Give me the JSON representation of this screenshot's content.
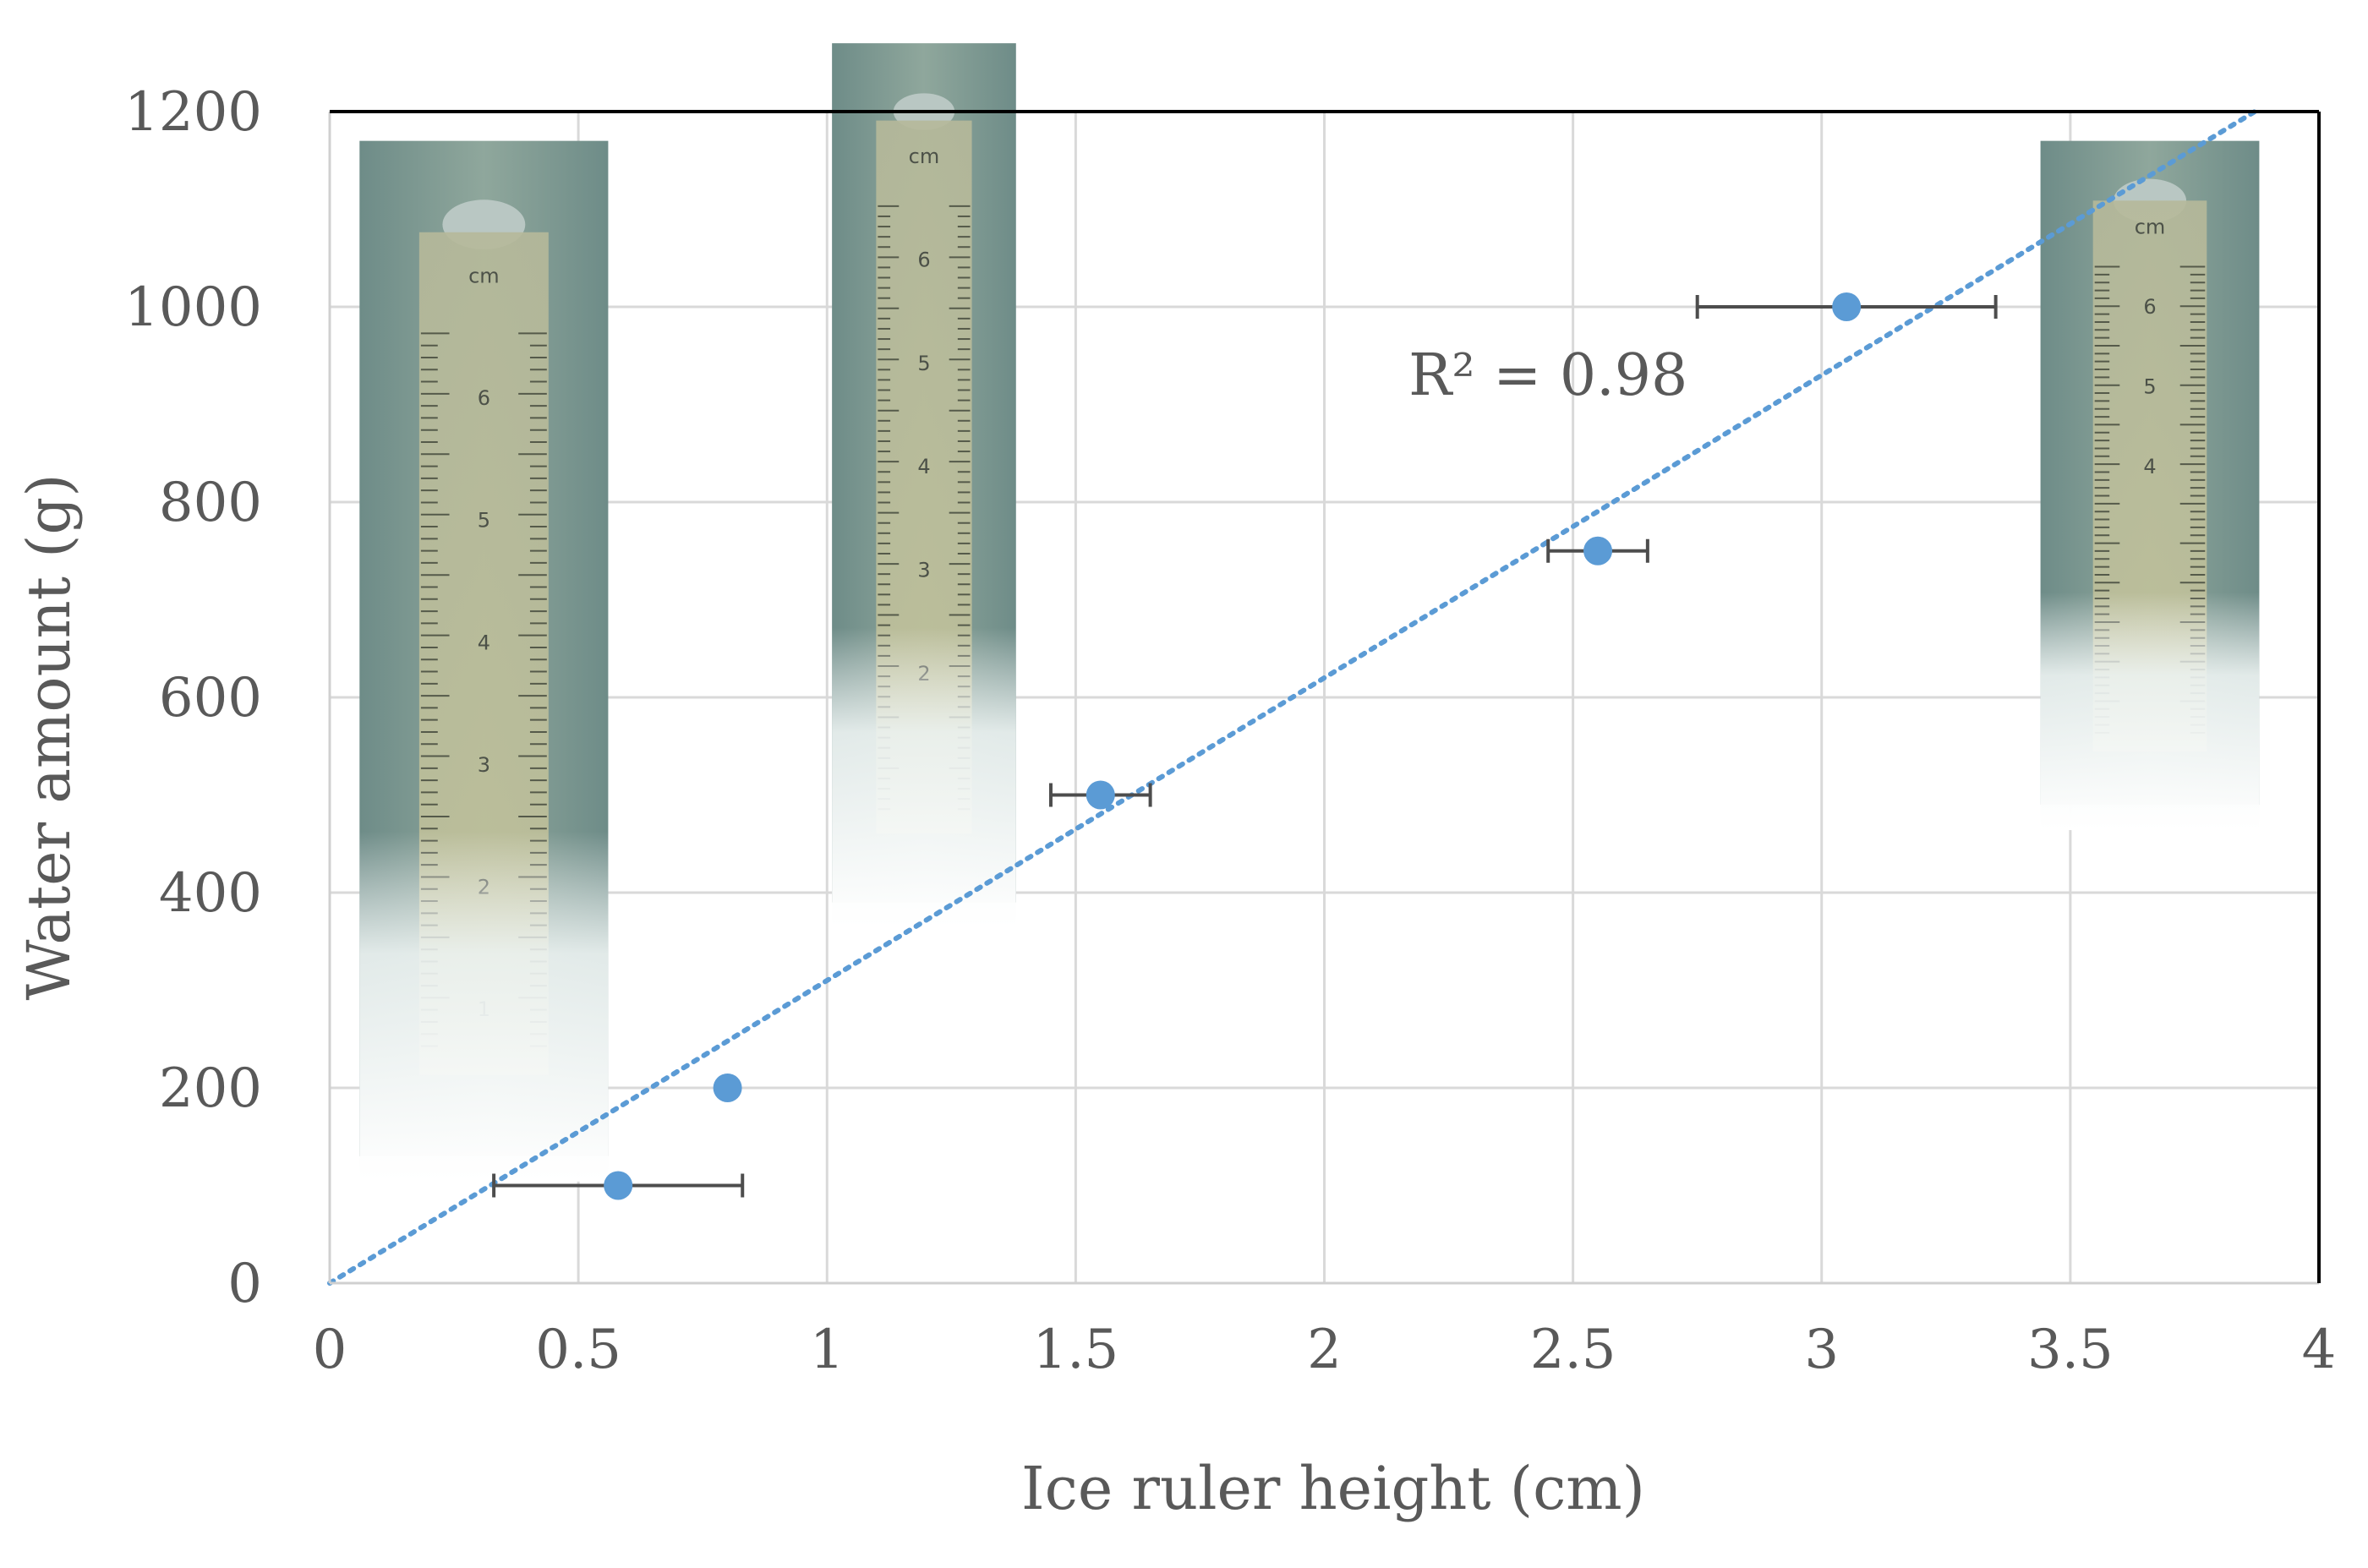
{
  "chart_data": {
    "type": "scatter",
    "xlabel": "Ice ruler height (cm)",
    "ylabel": "Water amount (g)",
    "xlim": [
      0,
      4
    ],
    "ylim": [
      0,
      1200
    ],
    "xticks": [
      0,
      0.5,
      1,
      1.5,
      2,
      2.5,
      3,
      3.5,
      4
    ],
    "xtick_labels": [
      "0",
      "0.5",
      "1",
      "1.5",
      "2",
      "2.5",
      "3",
      "3.5",
      "4"
    ],
    "yticks": [
      0,
      200,
      400,
      600,
      800,
      1000,
      1200
    ],
    "ytick_labels": [
      "0",
      "200",
      "400",
      "600",
      "800",
      "1000",
      "1200"
    ],
    "grid": true,
    "points": [
      {
        "x": 0.58,
        "y": 100,
        "xerr": 0.25
      },
      {
        "x": 0.8,
        "y": 200,
        "xerr": 0
      },
      {
        "x": 1.55,
        "y": 500,
        "xerr": 0.1
      },
      {
        "x": 2.55,
        "y": 750,
        "xerr": 0.1
      },
      {
        "x": 3.05,
        "y": 1000,
        "xerr": 0.3
      }
    ],
    "trendline": {
      "type": "linear",
      "through_origin": true,
      "slope": 310,
      "x_end": 3.87
    },
    "annotation": "R² = 0.98",
    "annotation_at": {
      "x": 2.45,
      "y": 910
    },
    "colors": {
      "marker": "#5b9bd5",
      "trendline": "#5b9bd5",
      "errorbar": "#4d4d4d",
      "grid": "#d9d9d9",
      "text": "#595959"
    }
  },
  "insets": [
    {
      "name": "ice-ruler-photo-1",
      "x_from": 0.06,
      "x_to": 0.56,
      "y_top": 1170,
      "y_bottom": 130,
      "cm_labels": [
        "cm",
        "6",
        "5",
        "4",
        "3",
        "2",
        "1"
      ]
    },
    {
      "name": "ice-ruler-photo-2",
      "x_from": 1.01,
      "x_to": 1.38,
      "y_top": 1270,
      "y_bottom": 390,
      "cm_labels": [
        "cm",
        "6",
        "5",
        "4",
        "3",
        "2"
      ]
    },
    {
      "name": "ice-ruler-photo-3",
      "x_from": 3.44,
      "x_to": 3.88,
      "y_top": 1170,
      "y_bottom": 490,
      "cm_labels": [
        "cm",
        "6",
        "5",
        "4"
      ]
    }
  ]
}
